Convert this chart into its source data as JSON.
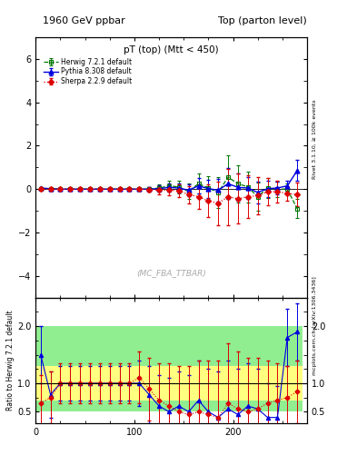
{
  "title_left": "1960 GeV ppbar",
  "title_right": "Top (parton level)",
  "plot_title": "pT (top) (Mtt < 450)",
  "watermark": "(MC_FBA_TTBAR)",
  "right_label": "Rivet 3.1.10, ≥ 100k events",
  "arxiv_label": "mcplots.cern.ch [arXiv:1306.3436]",
  "ylabel_ratio": "Ratio to Herwig 7.2.1 default",
  "ylim_main": [
    -5,
    7
  ],
  "ylim_ratio": [
    0.3,
    2.5
  ],
  "yticks_main": [
    -4,
    -2,
    0,
    2,
    4,
    6
  ],
  "yticks_ratio": [
    0.5,
    1.0,
    2.0
  ],
  "xlim": [
    0,
    275
  ],
  "xticks": [
    0,
    100,
    200
  ],
  "herwig_color": "#007700",
  "pythia_color": "#0000dd",
  "sherpa_color": "#dd0000",
  "legend_entries": [
    "Herwig 7.2.1 default",
    "Pythia 8.308 default",
    "Sherpa 2.2.9 default"
  ],
  "bin_edges": [
    0,
    10,
    20,
    30,
    40,
    50,
    60,
    70,
    80,
    90,
    100,
    110,
    120,
    130,
    140,
    150,
    160,
    170,
    180,
    190,
    200,
    210,
    220,
    230,
    240,
    250,
    260,
    270
  ],
  "herwig_vals": [
    0.02,
    0.01,
    0.0,
    0.0,
    0.0,
    0.0,
    0.0,
    0.0,
    0.0,
    0.0,
    0.0,
    0.0,
    0.05,
    0.15,
    0.1,
    -0.1,
    0.25,
    0.05,
    -0.15,
    0.55,
    0.25,
    0.1,
    -0.35,
    0.05,
    0.0,
    0.0,
    -0.9
  ],
  "herwig_err": [
    0.03,
    0.02,
    0.02,
    0.02,
    0.02,
    0.02,
    0.02,
    0.02,
    0.02,
    0.02,
    0.05,
    0.1,
    0.18,
    0.25,
    0.28,
    0.35,
    0.45,
    0.55,
    0.7,
    1.0,
    0.85,
    0.7,
    0.65,
    0.45,
    0.35,
    0.25,
    0.45
  ],
  "pythia_vals": [
    0.05,
    0.02,
    0.0,
    0.0,
    0.0,
    0.0,
    0.0,
    0.0,
    0.0,
    0.0,
    0.0,
    0.0,
    0.02,
    0.08,
    0.05,
    -0.05,
    0.15,
    0.02,
    -0.05,
    0.25,
    0.08,
    0.05,
    -0.15,
    0.02,
    0.05,
    0.15,
    0.85
  ],
  "pythia_err": [
    0.03,
    0.02,
    0.02,
    0.02,
    0.02,
    0.02,
    0.02,
    0.02,
    0.02,
    0.02,
    0.04,
    0.08,
    0.14,
    0.2,
    0.22,
    0.28,
    0.35,
    0.42,
    0.52,
    0.72,
    0.62,
    0.52,
    0.5,
    0.38,
    0.3,
    0.22,
    0.48
  ],
  "sherpa_vals": [
    0.0,
    0.0,
    0.0,
    0.0,
    0.0,
    0.0,
    0.0,
    0.0,
    0.0,
    0.0,
    0.0,
    -0.02,
    -0.05,
    -0.05,
    -0.08,
    -0.25,
    -0.35,
    -0.55,
    -0.65,
    -0.35,
    -0.45,
    -0.35,
    -0.3,
    -0.12,
    -0.12,
    -0.2,
    -0.25
  ],
  "sherpa_err": [
    0.03,
    0.02,
    0.02,
    0.02,
    0.02,
    0.02,
    0.02,
    0.02,
    0.02,
    0.02,
    0.05,
    0.1,
    0.18,
    0.25,
    0.3,
    0.4,
    0.55,
    0.75,
    1.0,
    1.3,
    1.15,
    1.0,
    0.85,
    0.62,
    0.5,
    0.35,
    0.55
  ],
  "ratio_pythia": [
    1.5,
    0.8,
    1.0,
    1.0,
    1.0,
    1.0,
    1.0,
    1.0,
    1.0,
    1.0,
    1.0,
    0.8,
    0.6,
    0.5,
    0.6,
    0.5,
    0.7,
    0.5,
    0.4,
    0.55,
    0.45,
    0.6,
    0.55,
    0.4,
    0.4,
    1.8,
    1.9
  ],
  "ratio_pythia_err": [
    0.5,
    0.4,
    0.3,
    0.3,
    0.3,
    0.3,
    0.3,
    0.3,
    0.3,
    0.3,
    0.4,
    0.5,
    0.55,
    0.6,
    0.6,
    0.65,
    0.7,
    0.75,
    0.8,
    0.85,
    0.8,
    0.75,
    0.7,
    0.6,
    0.55,
    0.5,
    0.5
  ],
  "ratio_sherpa": [
    0.65,
    0.75,
    1.0,
    1.0,
    1.0,
    1.0,
    1.0,
    1.0,
    1.0,
    1.0,
    1.1,
    0.9,
    0.7,
    0.6,
    0.5,
    0.45,
    0.5,
    0.45,
    0.4,
    0.65,
    0.55,
    0.5,
    0.55,
    0.65,
    0.7,
    0.75,
    0.85
  ],
  "ratio_sherpa_err": [
    0.5,
    0.45,
    0.35,
    0.35,
    0.35,
    0.35,
    0.35,
    0.35,
    0.35,
    0.35,
    0.45,
    0.55,
    0.65,
    0.75,
    0.8,
    0.85,
    0.9,
    0.95,
    1.0,
    1.05,
    1.0,
    0.95,
    0.9,
    0.75,
    0.65,
    0.55,
    0.55
  ],
  "green_band": [
    0.5,
    2.0
  ],
  "yellow_band": [
    0.7,
    1.3
  ]
}
